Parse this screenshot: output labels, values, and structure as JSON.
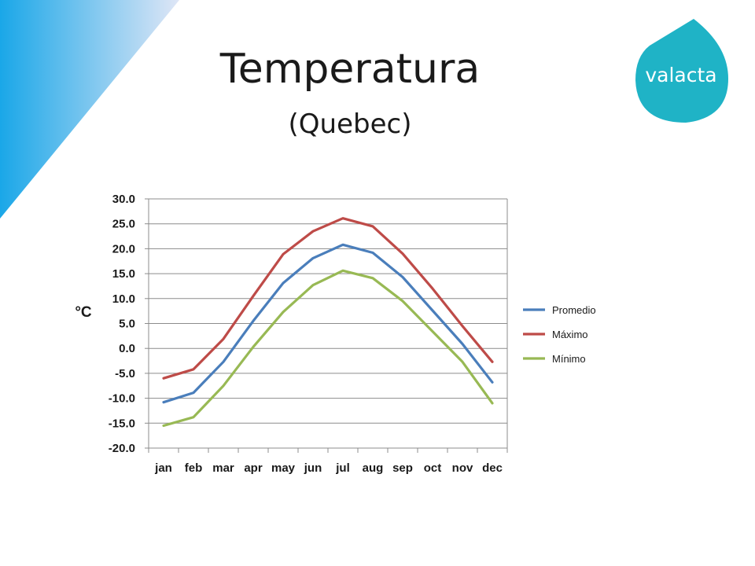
{
  "slide": {
    "title": "Temperatura",
    "subtitle": "(Quebec)",
    "logo_text": "valacta",
    "logo_color": "#1fb3c6",
    "corner_gradient": [
      "#1aa7e8",
      "#ffffff"
    ]
  },
  "chart_data": {
    "type": "line",
    "categories": [
      "jan",
      "feb",
      "mar",
      "apr",
      "may",
      "jun",
      "jul",
      "aug",
      "sep",
      "oct",
      "nov",
      "dec"
    ],
    "ylabel": "°C",
    "ylim": [
      -20,
      30
    ],
    "ytick_step": 5,
    "grid": true,
    "legend_position": "right",
    "series": [
      {
        "name": "Promedio",
        "color": "#4a7ebb",
        "values": [
          -10.8,
          -8.9,
          -2.7,
          5.5,
          13.1,
          18.1,
          20.8,
          19.2,
          14.3,
          7.6,
          0.9,
          -6.8
        ]
      },
      {
        "name": "Máximo",
        "color": "#be4b48",
        "values": [
          -6.0,
          -4.2,
          1.9,
          10.5,
          18.9,
          23.5,
          26.1,
          24.5,
          19.0,
          12.0,
          4.5,
          -2.7
        ]
      },
      {
        "name": "Mínimo",
        "color": "#98b954",
        "values": [
          -15.5,
          -13.8,
          -7.5,
          0.3,
          7.3,
          12.7,
          15.6,
          14.1,
          9.5,
          3.4,
          -2.7,
          -11.0
        ]
      }
    ]
  }
}
